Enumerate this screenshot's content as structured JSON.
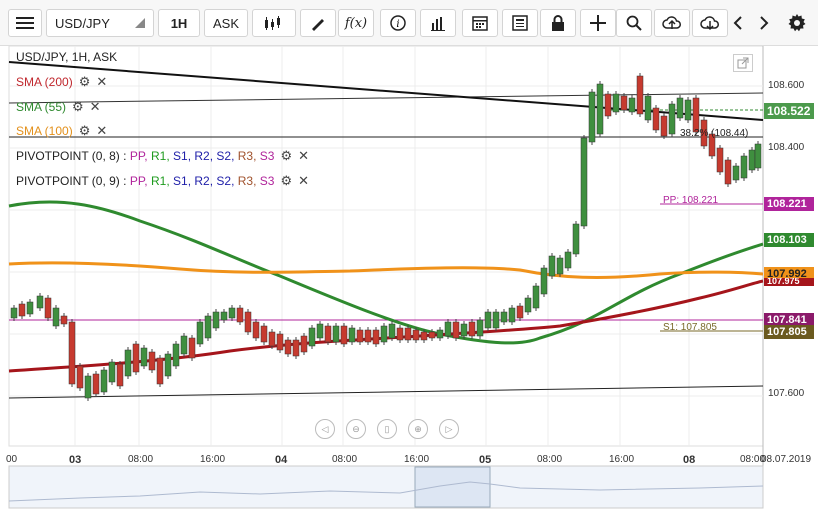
{
  "toolbar": {
    "symbol": "USD/JPY",
    "timeframe": "1H",
    "price_type": "ASK",
    "icons": [
      "menu-icon",
      "candlestick-type-icon",
      "draw-tool-icon",
      "indicator-fx-icon",
      "info-icon",
      "bar-chart-icon",
      "calendar-icon",
      "news-icon",
      "lock-icon",
      "crosshair-icon",
      "zoom-search-icon",
      "cloud-upload-icon",
      "cloud-download-icon",
      "chevron-left-icon",
      "chevron-right-icon",
      "gear-icon"
    ]
  },
  "chart": {
    "header": "USD/JPY, 1H, ASK",
    "indicators": [
      {
        "label": "SMA (200)",
        "color": "#c0272d"
      },
      {
        "label": "SMA (55)",
        "color": "#2f8a2f"
      },
      {
        "label": "SMA (100)",
        "color": "#e3901b"
      }
    ],
    "pivots": [
      {
        "label": "PIVOTPOINT (0, 8)",
        "sep": ":",
        "levels": [
          "PP,",
          "R1,",
          "S1,",
          "R2,",
          "S2,",
          "R3,",
          "S3"
        ]
      },
      {
        "label": "PIVOTPOINT (0, 9)",
        "sep": ":",
        "levels": [
          "PP,",
          "R1,",
          "S1,",
          "R2,",
          "S2,",
          "R3,",
          "S3"
        ]
      }
    ],
    "fib_label": "38.2% (108.44)",
    "pp_label": "PP: 108.221",
    "s1_label": "S1: 107.805",
    "price_labels": {
      "current": "108.522",
      "pp": "108.221",
      "sma55": "108.103",
      "sma100": "107.992",
      "sma200": "107.975",
      "other": "107.841",
      "s1": "107.805"
    },
    "y_ticks": [
      "108.600",
      "108.400",
      "107.600"
    ],
    "x_ticks": [
      "00",
      "03",
      "08:00",
      "16:00",
      "04",
      "08:00",
      "16:00",
      "05",
      "08:00",
      "16:00",
      "08",
      "08:00"
    ],
    "x_date": "08.07.2019"
  },
  "nav_buttons": [
    "scroll-left-icon",
    "zoom-out-icon",
    "reset-icon",
    "zoom-in-icon",
    "scroll-right-icon"
  ]
}
